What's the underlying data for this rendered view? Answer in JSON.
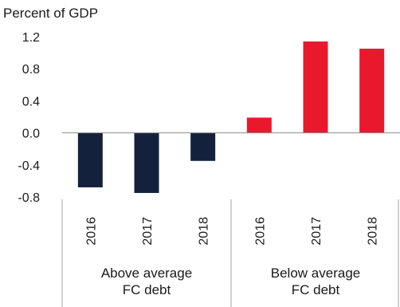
{
  "chart_data": {
    "type": "bar",
    "ylabel": "Percent of GDP",
    "ylim": [
      -0.8,
      1.2
    ],
    "yticks": [
      1.2,
      0.8,
      0.4,
      0.0,
      -0.4,
      -0.8
    ],
    "ytick_labels": [
      "1.2",
      "0.8",
      "0.4",
      "0.0",
      "-0.4",
      "-0.8"
    ],
    "groups": [
      {
        "label_lines": [
          "Above average",
          "FC debt"
        ],
        "color": "#14213d",
        "categories": [
          "2016",
          "2017",
          "2018"
        ],
        "values": [
          -0.68,
          -0.75,
          -0.35
        ]
      },
      {
        "label_lines": [
          "Below average",
          "FC debt"
        ],
        "color": "#e8192c",
        "categories": [
          "2016",
          "2017",
          "2018"
        ],
        "values": [
          0.19,
          1.14,
          1.05
        ]
      }
    ]
  }
}
